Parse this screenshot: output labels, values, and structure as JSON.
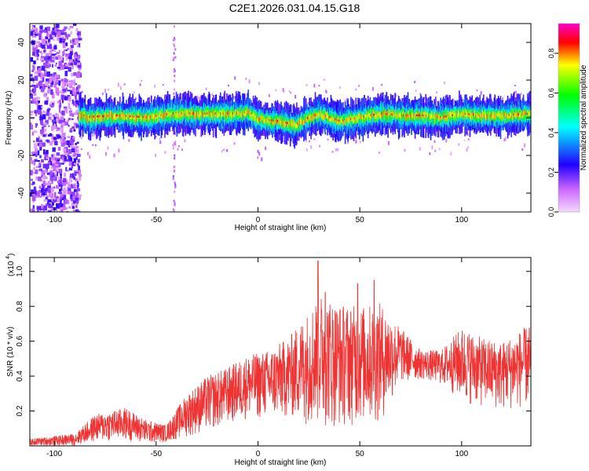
{
  "title": "C2E1.2026.031.04.15.G18",
  "chart_data": [
    {
      "type": "heatmap",
      "name": "spectrogram",
      "xlabel": "Height of straight line (km)",
      "ylabel": "Frequency (Hz)",
      "xlim": [
        -112,
        134
      ],
      "ylim": [
        -50,
        50
      ],
      "xticks": [
        "-100",
        "-50",
        "0",
        "50",
        "100"
      ],
      "yticks": [
        "-40",
        "-20",
        "0",
        "20",
        "40"
      ],
      "colorbar": {
        "label": "Normalized spectral amplitude",
        "range": [
          0,
          0.95
        ],
        "ticks": [
          "0.0",
          "0.2",
          "0.4",
          "0.6",
          "0.8"
        ],
        "colors": [
          "#ff00ff",
          "#0000ff",
          "#00ffff",
          "#00ff00",
          "#ffff00",
          "#ff0000"
        ]
      },
      "ridge": {
        "center_hz": 1,
        "wiggle": [
          {
            "x": -85,
            "y": 0
          },
          {
            "x": -70,
            "y": 1
          },
          {
            "x": -55,
            "y": 0
          },
          {
            "x": -42,
            "y": 2
          },
          {
            "x": -30,
            "y": 2
          },
          {
            "x": -20,
            "y": 2
          },
          {
            "x": -10,
            "y": 2
          },
          {
            "x": -5,
            "y": 3
          },
          {
            "x": 0,
            "y": -1
          },
          {
            "x": 10,
            "y": -2
          },
          {
            "x": 18,
            "y": -4
          },
          {
            "x": 25,
            "y": 0
          },
          {
            "x": 30,
            "y": 2
          },
          {
            "x": 40,
            "y": -2
          },
          {
            "x": 50,
            "y": 0
          },
          {
            "x": 60,
            "y": 2
          },
          {
            "x": 70,
            "y": 1
          },
          {
            "x": 80,
            "y": 1
          },
          {
            "x": 90,
            "y": 0
          },
          {
            "x": 100,
            "y": 2
          },
          {
            "x": 110,
            "y": 1
          },
          {
            "x": 120,
            "y": 1
          },
          {
            "x": 134,
            "y": 2
          }
        ]
      }
    },
    {
      "type": "line",
      "name": "snr",
      "xlabel": "Height of straight line (km)",
      "ylabel": "SNR (10 * v/v)",
      "exponent_label": "(x10",
      "exponent_power": "4",
      "xlim": [
        -112,
        134
      ],
      "ylim": [
        0,
        1.08
      ],
      "xticks": [
        "-100",
        "-50",
        "0",
        "50",
        "100"
      ],
      "yticks": [
        "0.2",
        "0.4",
        "0.6",
        "0.8",
        "1.0"
      ],
      "color": "#ee3333",
      "envelope": [
        {
          "x": -112,
          "lo": 0.0,
          "hi": 0.04
        },
        {
          "x": -90,
          "lo": 0.0,
          "hi": 0.07
        },
        {
          "x": -80,
          "lo": 0.02,
          "hi": 0.18
        },
        {
          "x": -65,
          "lo": 0.03,
          "hi": 0.22
        },
        {
          "x": -55,
          "lo": 0.01,
          "hi": 0.15
        },
        {
          "x": -45,
          "lo": 0.02,
          "hi": 0.12
        },
        {
          "x": -35,
          "lo": 0.05,
          "hi": 0.3
        },
        {
          "x": -25,
          "lo": 0.08,
          "hi": 0.4
        },
        {
          "x": -15,
          "lo": 0.12,
          "hi": 0.45
        },
        {
          "x": -5,
          "lo": 0.15,
          "hi": 0.52
        },
        {
          "x": 5,
          "lo": 0.15,
          "hi": 0.55
        },
        {
          "x": 15,
          "lo": 0.15,
          "hi": 0.62
        },
        {
          "x": 25,
          "lo": 0.12,
          "hi": 0.78
        },
        {
          "x": 30,
          "lo": 0.1,
          "hi": 0.88
        },
        {
          "x": 40,
          "lo": 0.1,
          "hi": 0.82
        },
        {
          "x": 50,
          "lo": 0.12,
          "hi": 0.8
        },
        {
          "x": 60,
          "lo": 0.12,
          "hi": 0.82
        },
        {
          "x": 70,
          "lo": 0.35,
          "hi": 0.68
        },
        {
          "x": 80,
          "lo": 0.38,
          "hi": 0.55
        },
        {
          "x": 90,
          "lo": 0.35,
          "hi": 0.55
        },
        {
          "x": 100,
          "lo": 0.25,
          "hi": 0.68
        },
        {
          "x": 110,
          "lo": 0.22,
          "hi": 0.62
        },
        {
          "x": 120,
          "lo": 0.2,
          "hi": 0.6
        },
        {
          "x": 134,
          "lo": 0.22,
          "hi": 0.7
        }
      ],
      "peaks": [
        {
          "x": 29.5,
          "y": 1.06
        },
        {
          "x": 49,
          "y": 0.93
        },
        {
          "x": 57,
          "y": 0.95
        },
        {
          "x": 33,
          "y": 0.88
        }
      ]
    }
  ]
}
